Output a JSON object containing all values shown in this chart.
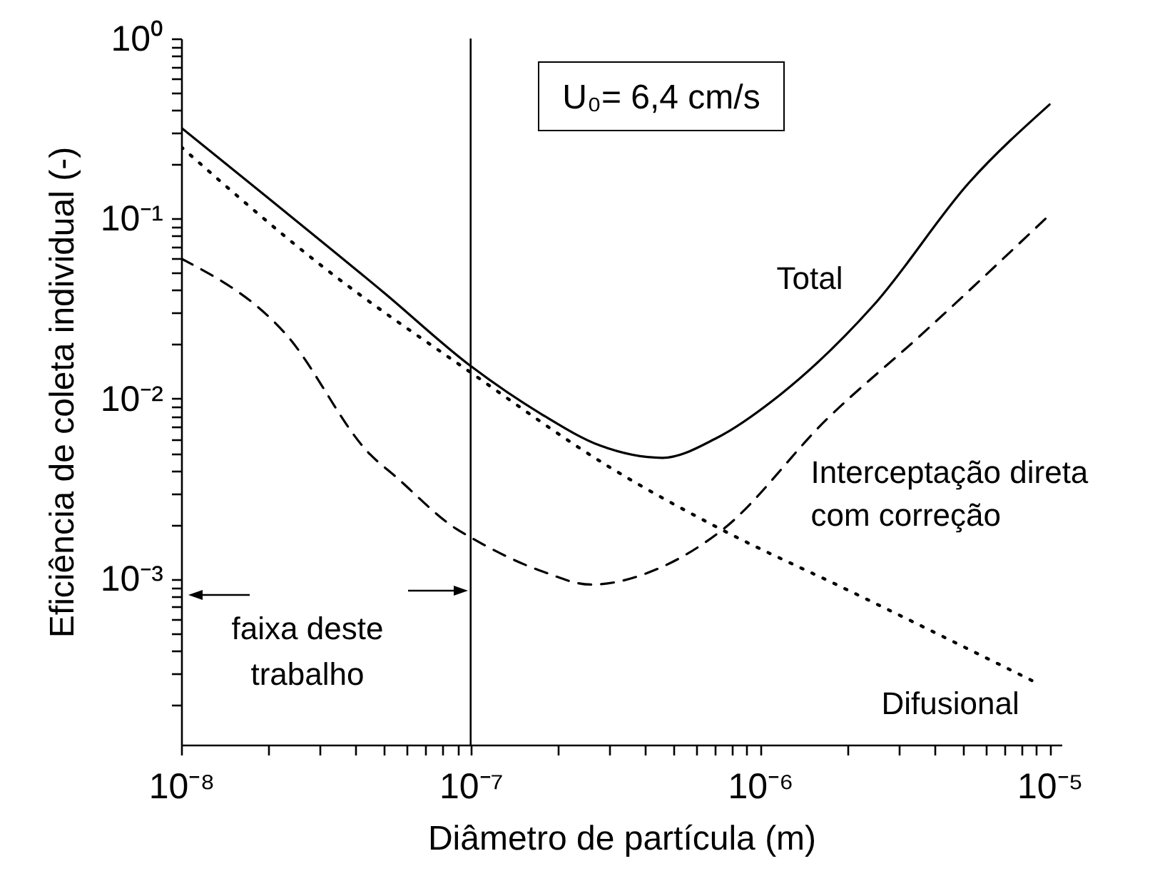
{
  "chart_data": {
    "type": "line",
    "xlabel": "Diâmetro de partícula (m)",
    "ylabel": "Eficiência de coleta individual (-)",
    "annotations": [
      "U₀= 6,4 cm/s",
      "faixa deste trabalho"
    ],
    "log": "xy",
    "grid": false,
    "legend": false,
    "xlim": [
      1e-08,
      1.1e-05
    ],
    "ylim": [
      0.00012,
      1
    ],
    "xticks": [
      {
        "value": 1e-08,
        "label": "10⁻⁸"
      },
      {
        "value": 2e-08,
        "label": null
      },
      {
        "value": 3e-08,
        "label": null
      },
      {
        "value": 4e-08,
        "label": null
      },
      {
        "value": 5e-08,
        "label": null
      },
      {
        "value": 6e-08,
        "label": null
      },
      {
        "value": 7e-08,
        "label": null
      },
      {
        "value": 8e-08,
        "label": null
      },
      {
        "value": 9e-08,
        "label": null
      },
      {
        "value": 1e-07,
        "label": "10⁻⁷"
      },
      {
        "value": 2e-07,
        "label": null
      },
      {
        "value": 3e-07,
        "label": null
      },
      {
        "value": 4e-07,
        "label": null
      },
      {
        "value": 5e-07,
        "label": null
      },
      {
        "value": 6e-07,
        "label": null
      },
      {
        "value": 7e-07,
        "label": null
      },
      {
        "value": 8e-07,
        "label": null
      },
      {
        "value": 9e-07,
        "label": null
      },
      {
        "value": 1e-06,
        "label": "10⁻⁶"
      },
      {
        "value": 2e-06,
        "label": null
      },
      {
        "value": 3e-06,
        "label": null
      },
      {
        "value": 4e-06,
        "label": null
      },
      {
        "value": 5e-06,
        "label": null
      },
      {
        "value": 6e-06,
        "label": null
      },
      {
        "value": 7e-06,
        "label": null
      },
      {
        "value": 8e-06,
        "label": null
      },
      {
        "value": 9e-06,
        "label": null
      },
      {
        "value": 1e-05,
        "label": "10⁻⁵"
      }
    ],
    "yticks": [
      {
        "value": 0.0002,
        "label": null
      },
      {
        "value": 0.0003,
        "label": null
      },
      {
        "value": 0.0004,
        "label": null
      },
      {
        "value": 0.0005,
        "label": null
      },
      {
        "value": 0.0006,
        "label": null
      },
      {
        "value": 0.0007,
        "label": null
      },
      {
        "value": 0.0008,
        "label": null
      },
      {
        "value": 0.0009,
        "label": null
      },
      {
        "value": 0.001,
        "label": "10⁻³"
      },
      {
        "value": 0.002,
        "label": null
      },
      {
        "value": 0.003,
        "label": null
      },
      {
        "value": 0.004,
        "label": null
      },
      {
        "value": 0.005,
        "label": null
      },
      {
        "value": 0.006,
        "label": null
      },
      {
        "value": 0.007,
        "label": null
      },
      {
        "value": 0.008,
        "label": null
      },
      {
        "value": 0.009,
        "label": null
      },
      {
        "value": 0.01,
        "label": "10⁻²"
      },
      {
        "value": 0.02,
        "label": null
      },
      {
        "value": 0.03,
        "label": null
      },
      {
        "value": 0.04,
        "label": null
      },
      {
        "value": 0.05,
        "label": null
      },
      {
        "value": 0.06,
        "label": null
      },
      {
        "value": 0.07,
        "label": null
      },
      {
        "value": 0.08,
        "label": null
      },
      {
        "value": 0.09,
        "label": null
      },
      {
        "value": 0.1,
        "label": "10⁻¹"
      },
      {
        "value": 0.2,
        "label": null
      },
      {
        "value": 0.3,
        "label": null
      },
      {
        "value": 0.4,
        "label": null
      },
      {
        "value": 0.5,
        "label": null
      },
      {
        "value": 0.6,
        "label": null
      },
      {
        "value": 0.7,
        "label": null
      },
      {
        "value": 0.8,
        "label": null
      },
      {
        "value": 0.9,
        "label": null
      },
      {
        "value": 1,
        "label": "10⁰"
      }
    ],
    "ref_lines": [
      {
        "axis": "x",
        "value": 1e-07,
        "color": "#000000"
      }
    ],
    "series": [
      {
        "name": "Total",
        "color": "#000000",
        "line_style": "solid",
        "x": [
          1e-08,
          2e-08,
          5e-08,
          1e-07,
          1.76e-07,
          2.8e-07,
          4.6e-07,
          7e-07,
          1.17e-06,
          2.48e-06,
          5.3e-06,
          1e-05
        ],
        "values": [
          0.32,
          0.13,
          0.039,
          0.0152,
          0.0082,
          0.0055,
          0.0047,
          0.006,
          0.0105,
          0.0334,
          0.16,
          0.43
        ]
      },
      {
        "name": "Interceptação direta com correção",
        "color": "#000000",
        "line_style": "dashed",
        "x": [
          1e-08,
          2.29e-08,
          4.5e-08,
          5.5e-08,
          8.9e-08,
          1e-07,
          1.77e-07,
          2.6e-07,
          4.5e-07,
          7.4e-07,
          1.7e-06,
          3.64e-06,
          1e-05
        ],
        "values": [
          0.06,
          0.023,
          0.0049,
          0.0037,
          0.0019,
          0.0017,
          0.0011,
          0.00093,
          0.00115,
          0.00187,
          0.0077,
          0.023,
          0.105
        ]
      },
      {
        "name": "Difusional",
        "color": "#000000",
        "line_style": "dotted",
        "x": [
          1e-08,
          3e-08,
          1e-07,
          3e-07,
          7.4e-07,
          2e-06,
          8.8e-06
        ],
        "values": [
          0.25,
          0.056,
          0.014,
          0.0042,
          0.00187,
          0.00087,
          0.00027
        ]
      }
    ]
  }
}
